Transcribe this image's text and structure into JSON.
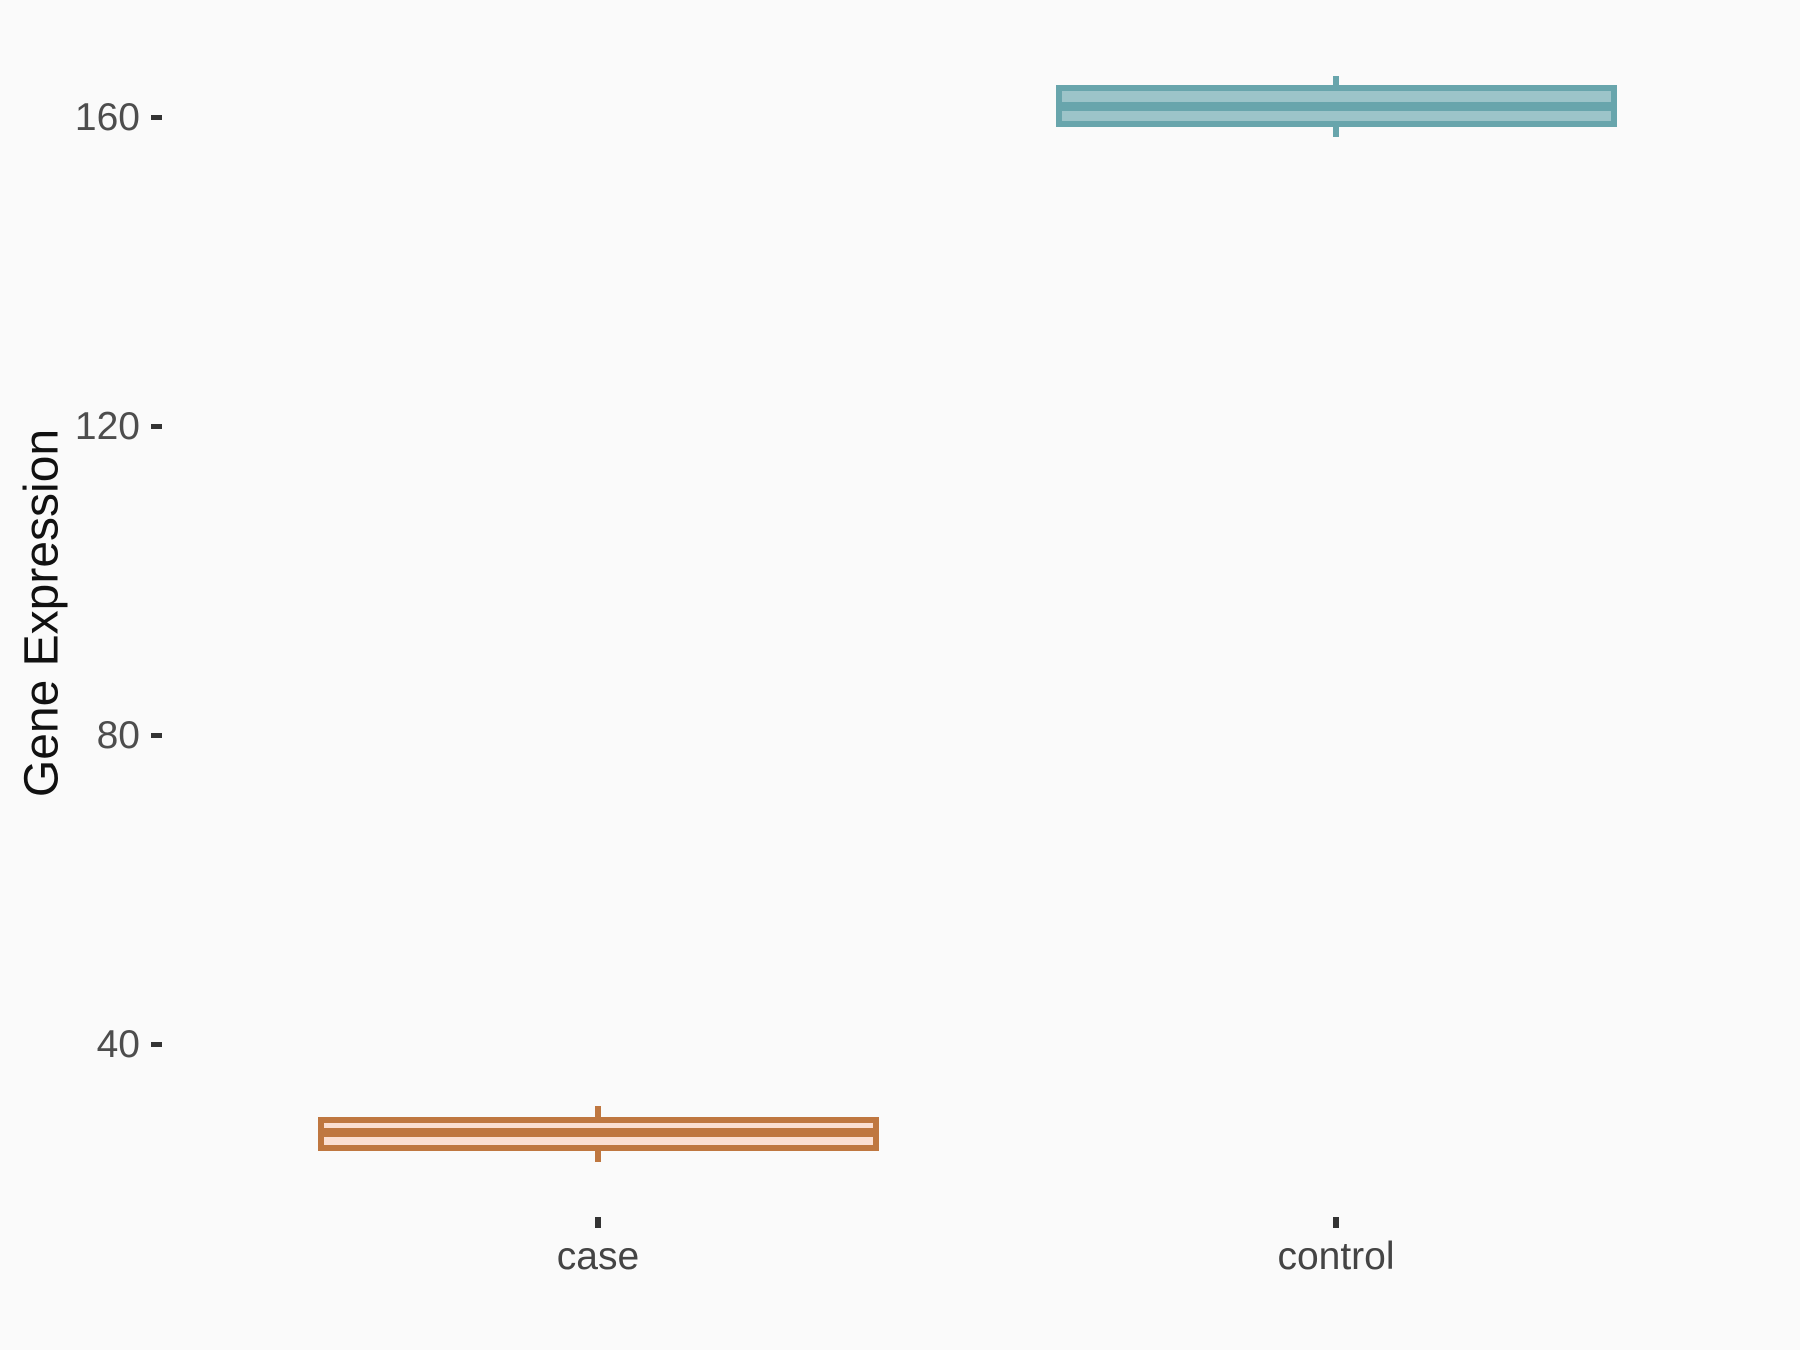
{
  "chart_data": {
    "type": "box",
    "orientation": "vertical",
    "title": "",
    "xlabel": "",
    "ylabel": "Gene Expression",
    "categories": [
      "case",
      "control"
    ],
    "y_ticks": [
      40,
      80,
      120,
      160
    ],
    "ylim": [
      22,
      170
    ],
    "grid": false,
    "legend": "none",
    "background_color": "#fafafa",
    "axis_text_color": "#4d4d4d",
    "axis_title_color": "#111111",
    "tick_mark_color": "#333333",
    "series": [
      {
        "name": "case",
        "min": 24.7,
        "q1": 26.2,
        "median": 28.5,
        "q3": 30.5,
        "max": 32.0,
        "border_color": "#bf7740",
        "fill_color": "#fbdfd2"
      },
      {
        "name": "control",
        "min": 157.4,
        "q1": 158.7,
        "median": 161.4,
        "q3": 164.1,
        "max": 165.3,
        "border_color": "#68a5ac",
        "fill_color": "#9cc4c9"
      }
    ]
  }
}
